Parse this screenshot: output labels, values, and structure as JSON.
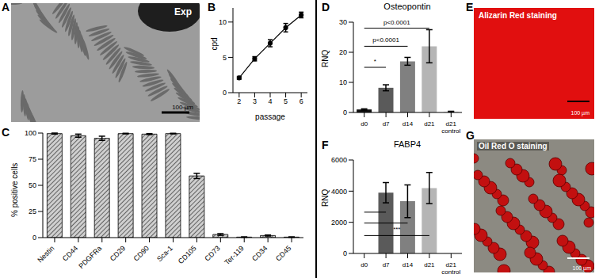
{
  "chart_data": [
    {
      "panel": "B",
      "type": "line",
      "x": [
        2,
        3,
        4,
        5,
        6
      ],
      "values": [
        2.1,
        4.8,
        7.0,
        9.2,
        11.0
      ],
      "errors": [
        0.2,
        0.3,
        0.5,
        0.6,
        0.4
      ],
      "xlim": [
        1.6,
        6.4
      ],
      "xticks": [
        2,
        3,
        4,
        5,
        6
      ],
      "ylim": [
        0,
        12
      ],
      "yticks": [
        0,
        5,
        10
      ],
      "x_label": "passage",
      "y_label": "cpd",
      "color": "#000000",
      "marker": "circle"
    },
    {
      "panel": "C",
      "type": "bar",
      "categories": [
        "Nestin",
        "CD44",
        "PDGFRa",
        "CD29",
        "CD90",
        "Sca-1",
        "CD105",
        "CD73",
        "Ter-119",
        "CD34",
        "CD45"
      ],
      "values": [
        99.5,
        97.5,
        95,
        99.5,
        99,
        99.5,
        59,
        3,
        0.5,
        2,
        0.5
      ],
      "errors": [
        0.5,
        1.5,
        2,
        0.3,
        0.5,
        0.3,
        2.5,
        0.8,
        0.2,
        0.5,
        0.2
      ],
      "ylim": [
        0,
        100
      ],
      "yticks": [
        0,
        25,
        50,
        75,
        100
      ],
      "y_label": "% positive cells",
      "color": "#cfcfcf"
    },
    {
      "panel": "D",
      "type": "bar",
      "title": "Osteopontin",
      "y_label": "RNQ",
      "categories": [
        "d0",
        "d7",
        "d14",
        "d21",
        "d21 control"
      ],
      "values": [
        1,
        8.2,
        17,
        22,
        0.3
      ],
      "errors": [
        0.2,
        1,
        1.3,
        5.5,
        0.1
      ],
      "colors": [
        "#111111",
        "#5a5a5a",
        "#808080",
        "#b5b5b5",
        "#dddddd"
      ],
      "ylim": [
        0,
        30
      ],
      "yticks": [
        0,
        10,
        20,
        30
      ],
      "annotations": [
        {
          "from": "d0",
          "to": "d21",
          "y": 28,
          "label": "p<0.0001"
        },
        {
          "from": "d0",
          "to": "d14",
          "y": 22,
          "label": "p<0.0001"
        },
        {
          "from": "d0",
          "to": "d7",
          "y": 15,
          "label": "*"
        }
      ]
    },
    {
      "panel": "F",
      "type": "bar",
      "title": "FABP4",
      "y_label": "RNQ",
      "categories": [
        "d0",
        "d7",
        "d14",
        "d21",
        "d21 control"
      ],
      "values": [
        1,
        3900,
        3350,
        4200,
        5
      ],
      "errors": [
        0,
        650,
        1050,
        1000,
        0
      ],
      "colors": [
        "#111111",
        "#5a5a5a",
        "#808080",
        "#b5b5b5",
        "#dddddd"
      ],
      "ylim": [
        0,
        6000
      ],
      "yticks": [
        0,
        2000,
        4000,
        6000
      ],
      "annotations": [
        {
          "from": "d0",
          "to": "d7",
          "y": 2650
        },
        {
          "from": "d0",
          "to": "d14",
          "y": 1950
        },
        {
          "from": "d0",
          "to": "d21",
          "y": 1150,
          "label": "***"
        }
      ]
    }
  ],
  "images": [
    {
      "panel": "A",
      "label": "Exp",
      "scale_bar": "100 µm",
      "color": "#9c9c9c"
    },
    {
      "panel": "E",
      "title": "Alizarin Red staining",
      "scale_bar": "100 µm",
      "color": "#e10f0f"
    },
    {
      "panel": "G",
      "title": "Oil Red O staining",
      "scale_bar": "100 µm",
      "color": "#c21010"
    }
  ]
}
